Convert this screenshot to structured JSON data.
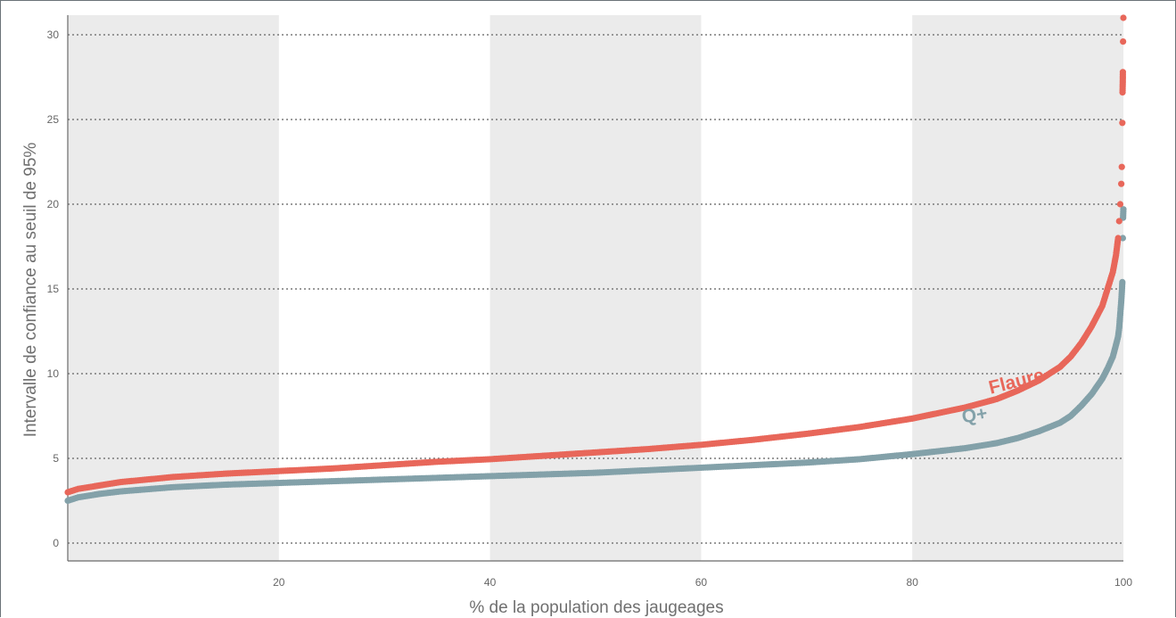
{
  "chart_data": {
    "type": "scatter",
    "title": "",
    "xlabel": "% de la population des jaugeages",
    "ylabel": "Intervalle de confiance au seuil de 95%",
    "xlim": [
      0,
      100
    ],
    "ylim": [
      0,
      31
    ],
    "x_ticks": [
      20,
      40,
      60,
      80,
      100
    ],
    "y_ticks": [
      0,
      5,
      10,
      15,
      20,
      25,
      30
    ],
    "grid": "horizontal-dotted",
    "shaded_x_bands": [
      [
        0,
        20
      ],
      [
        40,
        60
      ],
      [
        80,
        100
      ]
    ],
    "colors": {
      "Flaure": "#e8675a",
      "Q+": "#83a1a9",
      "band": "#ebebeb",
      "grid": "#7a7a7a"
    },
    "series": [
      {
        "name": "Flaure",
        "label_x": 90,
        "label_y": 9.2,
        "points": [
          [
            0,
            3.0
          ],
          [
            1,
            3.2
          ],
          [
            3,
            3.4
          ],
          [
            5,
            3.6
          ],
          [
            10,
            3.9
          ],
          [
            15,
            4.1
          ],
          [
            20,
            4.25
          ],
          [
            25,
            4.4
          ],
          [
            30,
            4.6
          ],
          [
            35,
            4.8
          ],
          [
            40,
            4.95
          ],
          [
            45,
            5.15
          ],
          [
            50,
            5.35
          ],
          [
            55,
            5.55
          ],
          [
            60,
            5.8
          ],
          [
            65,
            6.1
          ],
          [
            70,
            6.45
          ],
          [
            75,
            6.85
          ],
          [
            80,
            7.35
          ],
          [
            85,
            8.0
          ],
          [
            88,
            8.5
          ],
          [
            90,
            9.0
          ],
          [
            92,
            9.6
          ],
          [
            94,
            10.4
          ],
          [
            95,
            11.0
          ],
          [
            96,
            11.8
          ],
          [
            97,
            12.8
          ],
          [
            98,
            14.0
          ],
          [
            98.5,
            15.0
          ],
          [
            99,
            16.0
          ],
          [
            99.3,
            17.0
          ],
          [
            99.5,
            18.0
          ],
          [
            99.6,
            19.0
          ],
          [
            99.7,
            20.0
          ],
          [
            99.8,
            21.2
          ],
          [
            99.85,
            22.2
          ],
          [
            99.9,
            24.8
          ],
          [
            99.92,
            26.6
          ],
          [
            99.94,
            27.2
          ],
          [
            99.95,
            27.8
          ],
          [
            99.97,
            29.6
          ],
          [
            100,
            31.0
          ]
        ]
      },
      {
        "name": "Q+",
        "label_x": 86,
        "label_y": 7.2,
        "points": [
          [
            0,
            2.5
          ],
          [
            1,
            2.7
          ],
          [
            3,
            2.9
          ],
          [
            5,
            3.05
          ],
          [
            10,
            3.3
          ],
          [
            15,
            3.45
          ],
          [
            20,
            3.55
          ],
          [
            25,
            3.65
          ],
          [
            30,
            3.75
          ],
          [
            35,
            3.85
          ],
          [
            40,
            3.95
          ],
          [
            45,
            4.05
          ],
          [
            50,
            4.15
          ],
          [
            55,
            4.3
          ],
          [
            60,
            4.45
          ],
          [
            65,
            4.6
          ],
          [
            70,
            4.75
          ],
          [
            75,
            4.95
          ],
          [
            80,
            5.25
          ],
          [
            85,
            5.6
          ],
          [
            88,
            5.9
          ],
          [
            90,
            6.2
          ],
          [
            92,
            6.6
          ],
          [
            94,
            7.1
          ],
          [
            95,
            7.5
          ],
          [
            96,
            8.1
          ],
          [
            97,
            8.8
          ],
          [
            98,
            9.7
          ],
          [
            98.5,
            10.3
          ],
          [
            99,
            11.0
          ],
          [
            99.3,
            11.7
          ],
          [
            99.5,
            12.2
          ],
          [
            99.6,
            12.7
          ],
          [
            99.8,
            14.3
          ],
          [
            99.85,
            14.8
          ],
          [
            99.9,
            15.4
          ],
          [
            99.95,
            18.0
          ],
          [
            99.97,
            19.2
          ],
          [
            100,
            19.7
          ]
        ]
      }
    ]
  }
}
